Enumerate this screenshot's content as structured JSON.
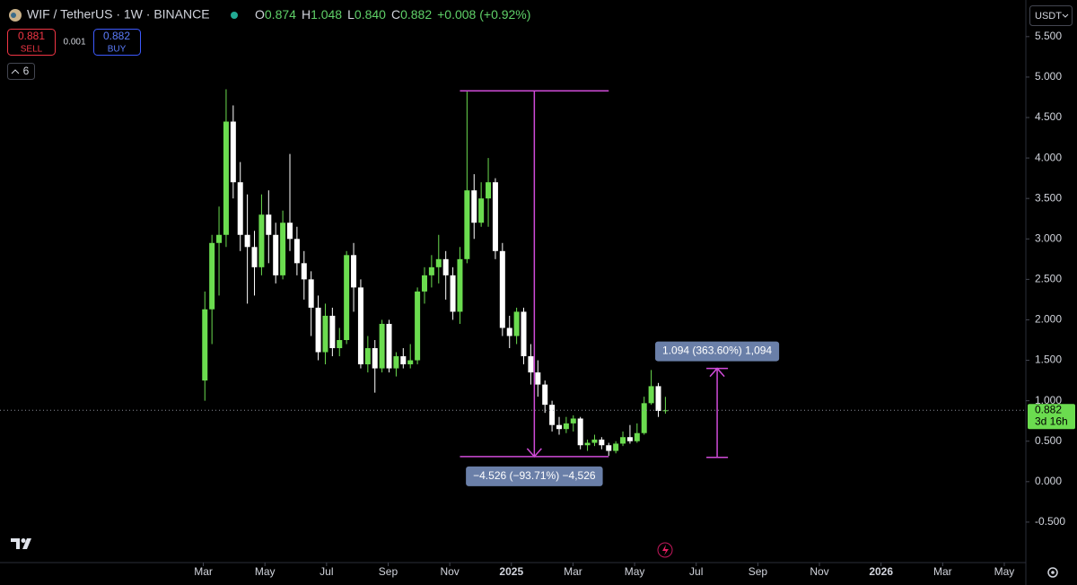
{
  "chart_data": {
    "type": "candlestick",
    "title": "WIF / TetherUS · 1W · BINANCE",
    "ohlc_header": [
      {
        "key": "O",
        "value": "0.874"
      },
      {
        "key": "H",
        "value": "1.048"
      },
      {
        "key": "L",
        "value": "0.840"
      },
      {
        "key": "C",
        "value": "0.882"
      }
    ],
    "change": "+0.008 (+0.92%)",
    "sell": {
      "price": "0.881",
      "label": "SELL"
    },
    "spread": "0.001",
    "buy": {
      "price": "0.882",
      "label": "BUY"
    },
    "indicator_count": "6",
    "currency": "USDT",
    "last_price": {
      "value": 0.882,
      "label": "0.882",
      "countdown": "3d 16h"
    },
    "up_color": "#6bdc4f",
    "down_color": "#ffffff",
    "x": [
      2.05,
      2.28,
      2.51,
      2.74,
      2.97,
      3.2,
      3.43,
      3.66,
      3.89,
      4.12,
      4.35,
      4.58,
      4.81,
      5.04,
      5.27,
      5.5,
      5.73,
      5.96,
      6.19,
      6.42,
      6.65,
      6.88,
      7.11,
      7.34,
      7.57,
      7.8,
      8.03,
      8.26,
      8.49,
      8.72,
      8.95,
      9.18,
      9.41,
      9.64,
      9.87,
      10.1,
      10.33,
      10.56,
      10.79,
      11.02,
      11.25,
      11.48,
      11.71,
      11.94,
      12.17,
      12.4,
      12.63,
      12.86,
      13.09,
      13.32,
      13.55,
      13.78,
      14.01,
      14.24,
      14.47,
      14.7,
      14.93,
      15.16,
      15.39,
      15.62,
      15.85,
      16.08,
      16.31,
      16.54,
      16.77,
      17.0
    ],
    "open": [
      1.25,
      2.13,
      2.95,
      3.05,
      4.45,
      3.7,
      3.05,
      2.9,
      2.65,
      3.3,
      3.05,
      2.55,
      3.2,
      3.0,
      2.7,
      2.5,
      2.15,
      1.6,
      2.05,
      1.65,
      1.75,
      2.8,
      2.4,
      1.45,
      1.65,
      1.4,
      1.95,
      1.4,
      1.55,
      1.45,
      1.5,
      2.35,
      2.55,
      2.65,
      2.75,
      2.55,
      2.1,
      2.75,
      3.6,
      3.2,
      3.5,
      3.7,
      2.85,
      1.9,
      1.8,
      2.1,
      1.55,
      1.35,
      1.2,
      0.95,
      0.7,
      0.65,
      0.72,
      0.78,
      0.45,
      0.48,
      0.52,
      0.45,
      0.38,
      0.47,
      0.55,
      0.5,
      0.6,
      0.97,
      1.18,
      0.874
    ],
    "high": [
      2.35,
      3.05,
      3.4,
      4.85,
      4.65,
      3.95,
      3.55,
      3.1,
      3.55,
      3.6,
      3.2,
      3.35,
      4.05,
      3.15,
      2.85,
      2.6,
      2.3,
      2.2,
      2.15,
      1.9,
      2.85,
      2.95,
      2.5,
      1.8,
      1.75,
      2.0,
      2.0,
      1.6,
      1.65,
      1.7,
      2.4,
      2.65,
      2.8,
      3.05,
      2.85,
      2.65,
      2.9,
      4.82,
      3.8,
      3.7,
      4.0,
      3.75,
      2.95,
      2.05,
      2.15,
      2.15,
      1.7,
      1.5,
      1.25,
      1.0,
      0.8,
      0.8,
      0.82,
      0.8,
      0.52,
      0.58,
      0.55,
      0.48,
      0.5,
      0.62,
      0.7,
      0.72,
      1.05,
      1.38,
      1.22,
      1.048
    ],
    "low": [
      1.0,
      1.7,
      2.3,
      2.9,
      3.5,
      2.85,
      2.2,
      2.3,
      2.55,
      2.7,
      2.45,
      2.5,
      2.85,
      2.55,
      2.25,
      1.8,
      1.5,
      1.45,
      1.55,
      1.55,
      1.7,
      2.1,
      1.4,
      1.35,
      1.1,
      1.35,
      1.35,
      1.3,
      1.4,
      1.4,
      1.45,
      2.2,
      2.4,
      2.45,
      2.25,
      2.0,
      1.95,
      2.7,
      3.0,
      3.15,
      3.15,
      2.75,
      1.8,
      1.65,
      1.7,
      1.45,
      1.2,
      1.05,
      0.85,
      0.62,
      0.58,
      0.6,
      0.62,
      0.4,
      0.38,
      0.44,
      0.4,
      0.32,
      0.35,
      0.44,
      0.47,
      0.48,
      0.58,
      0.95,
      0.8,
      0.84
    ],
    "close": [
      2.13,
      2.95,
      3.05,
      4.45,
      3.7,
      3.05,
      2.9,
      2.65,
      3.3,
      3.05,
      2.55,
      3.2,
      3.0,
      2.7,
      2.5,
      2.15,
      1.6,
      2.05,
      1.65,
      1.75,
      2.8,
      2.4,
      1.45,
      1.65,
      1.4,
      1.95,
      1.4,
      1.55,
      1.45,
      1.5,
      2.35,
      2.55,
      2.65,
      2.75,
      2.55,
      2.1,
      2.75,
      3.6,
      3.2,
      3.5,
      3.7,
      2.85,
      1.9,
      1.8,
      2.1,
      1.55,
      1.35,
      1.2,
      0.95,
      0.7,
      0.65,
      0.72,
      0.78,
      0.45,
      0.48,
      0.52,
      0.45,
      0.38,
      0.47,
      0.55,
      0.5,
      0.6,
      0.97,
      1.18,
      0.874,
      0.882
    ],
    "xlim": [
      -4.6,
      28.7
    ],
    "xticks": [
      {
        "value": 2,
        "label": "Mar"
      },
      {
        "value": 4,
        "label": "May"
      },
      {
        "value": 6,
        "label": "Jul"
      },
      {
        "value": 8,
        "label": "Sep"
      },
      {
        "value": 10,
        "label": "Nov"
      },
      {
        "value": 12,
        "label": "2025"
      },
      {
        "value": 14,
        "label": "Mar"
      },
      {
        "value": 16,
        "label": "May"
      },
      {
        "value": 18,
        "label": "Jul"
      },
      {
        "value": 20,
        "label": "Sep"
      },
      {
        "value": 22,
        "label": "Nov"
      },
      {
        "value": 24,
        "label": "2026"
      },
      {
        "value": 26,
        "label": "Mar"
      },
      {
        "value": 28,
        "label": "May"
      }
    ],
    "ylim": [
      -1.0,
      5.62
    ],
    "yticks": [
      {
        "value": 5.5,
        "label": "5.500"
      },
      {
        "value": 5,
        "label": "5.000"
      },
      {
        "value": 4.5,
        "label": "4.500"
      },
      {
        "value": 4,
        "label": "4.000"
      },
      {
        "value": 3.5,
        "label": "3.500"
      },
      {
        "value": 3,
        "label": "3.000"
      },
      {
        "value": 2.5,
        "label": "2.500"
      },
      {
        "value": 2,
        "label": "2.000"
      },
      {
        "value": 1.5,
        "label": "1.500"
      },
      {
        "value": 1,
        "label": "1.000"
      },
      {
        "value": 0.5,
        "label": "0.500"
      },
      {
        "value": 0,
        "label": "0.000"
      },
      {
        "value": -0.5,
        "label": "-0.500"
      }
    ],
    "measures": [
      {
        "label": "−4.526 (−93.71%) −4,526",
        "from": 4.83,
        "to": 0.31,
        "x0": 10.33,
        "x1": 15.16
      },
      {
        "label": "1.094 (363.60%) 1,094",
        "from": 0.3,
        "to": 1.4,
        "x0": 18.33,
        "x1": 19.03
      }
    ]
  }
}
